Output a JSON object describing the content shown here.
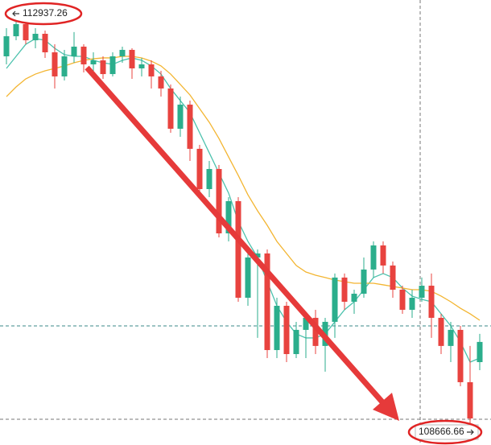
{
  "chart_data": {
    "type": "candlestick",
    "ylim": [
      108535,
      113077
    ],
    "up_color": "#2bae8c",
    "down_color": "#e8433f",
    "open": [
      112502,
      112707,
      112831,
      112666,
      112732,
      112543,
      112297,
      112502,
      112601,
      112420,
      112461,
      112321,
      112502,
      112568,
      112379,
      112420,
      112297,
      112174,
      111763,
      112009,
      111558,
      111147,
      111352,
      110695,
      111024,
      110038,
      110449,
      110490,
      109504,
      109956,
      109463,
      109710,
      109833,
      109546,
      109792,
      110244,
      109997,
      110079,
      110326,
      110572,
      110367,
      110120,
      109915,
      110038,
      110161,
      109833,
      109546,
      109710,
      109176,
      109381
    ],
    "high": [
      112790,
      112937.26,
      112847,
      112790,
      112765,
      112625,
      112568,
      112749,
      112625,
      112543,
      112502,
      112543,
      112601,
      112584,
      112486,
      112461,
      112354,
      112215,
      112091,
      112050,
      111599,
      111434,
      111393,
      111065,
      111065,
      110531,
      110531,
      110531,
      110038,
      109997,
      109792,
      109874,
      109915,
      109833,
      110285,
      110285,
      110120,
      110449,
      110613,
      110613,
      110408,
      110161,
      110120,
      110244,
      110285,
      109874,
      109792,
      109751,
      109546,
      109669
    ],
    "low": [
      112420,
      112666,
      112625,
      112584,
      112486,
      112174,
      112256,
      112436,
      112338,
      112297,
      112272,
      112297,
      112436,
      112272,
      112297,
      112174,
      112091,
      111722,
      111681,
      111434,
      111106,
      111065,
      110654,
      110613,
      109997,
      109956,
      109628,
      109422,
      109422,
      109381,
      109422,
      109422,
      109463,
      109283,
      109628,
      109915,
      109874,
      110038,
      110244,
      110285,
      110038,
      109874,
      109833,
      109997,
      109628,
      109463,
      109381,
      109135,
      108666.66,
      109299
    ],
    "close": [
      112707,
      112831,
      112666,
      112732,
      112543,
      112297,
      112502,
      112601,
      112420,
      112461,
      112321,
      112502,
      112568,
      112379,
      112420,
      112297,
      112174,
      111763,
      112009,
      111558,
      111147,
      111352,
      110695,
      111024,
      110038,
      110449,
      110490,
      109504,
      109956,
      109463,
      109710,
      109833,
      109546,
      109792,
      110244,
      109997,
      110079,
      110326,
      110572,
      110367,
      110120,
      109915,
      110038,
      110161,
      109833,
      109546,
      109710,
      109176,
      108806,
      109587
    ],
    "lines": [
      {
        "color": "#4cc2ad",
        "values": [
          112379,
          112502,
          112625,
          112683,
          112666,
          112584,
          112519,
          112502,
          112502,
          112461,
          112436,
          112420,
          112461,
          112486,
          112461,
          112404,
          112321,
          112174,
          112050,
          111927,
          111722,
          111517,
          111311,
          111106,
          110818,
          110613,
          110449,
          110202,
          109956,
          109792,
          109669,
          109628,
          109628,
          109669,
          109792,
          109915,
          109997,
          110120,
          110244,
          110285,
          110244,
          110137,
          110055,
          110022,
          109997,
          109874,
          109751,
          109587,
          109381,
          109422
        ]
      },
      {
        "color": "#f3b531",
        "values": [
          112091,
          112190,
          112272,
          112321,
          112354,
          112379,
          112404,
          112436,
          112461,
          112477,
          112486,
          112486,
          112502,
          112502,
          112486,
          112453,
          112404,
          112321,
          112215,
          112108,
          111968,
          111829,
          111664,
          111475,
          111287,
          111089,
          110925,
          110777,
          110613,
          110490,
          110367,
          110301,
          110268,
          110244,
          110219,
          110202,
          110186,
          110186,
          110186,
          110170,
          110153,
          110137,
          110120,
          110120,
          110104,
          110055,
          109997,
          109931,
          109874,
          109808
        ]
      }
    ]
  }
}
